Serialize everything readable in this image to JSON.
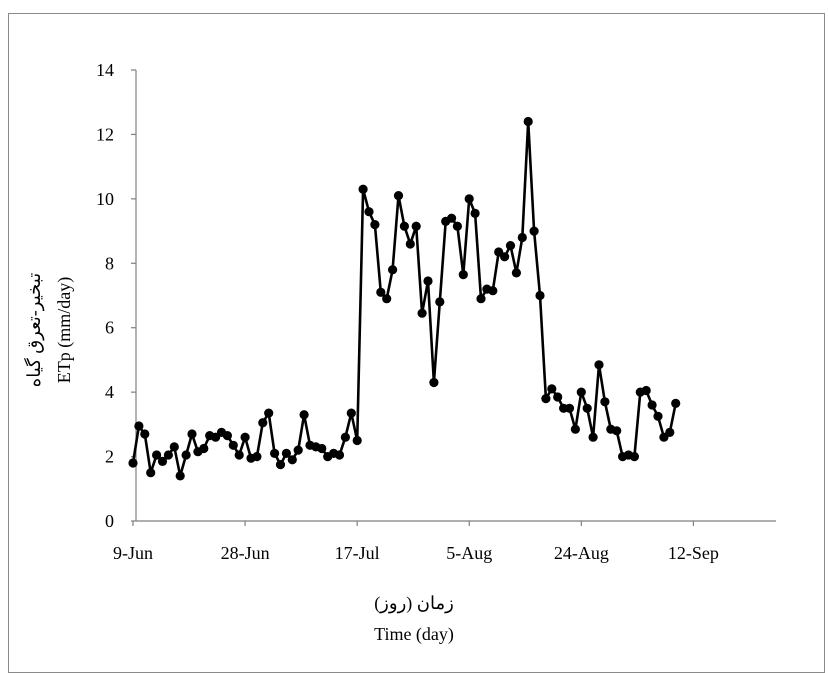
{
  "chart_data": {
    "type": "line",
    "title": "",
    "xlabel_fa": "زمان (روز)",
    "xlabel_en": "Time (day)",
    "ylabel_fa": "تبخیر-تعرق گیاه",
    "ylabel_en": "ETp (mm/day)",
    "ylim": [
      0,
      14
    ],
    "yticks": [
      0,
      2,
      4,
      6,
      8,
      10,
      12,
      14
    ],
    "xlim_days": [
      0,
      109
    ],
    "xticks": [
      {
        "day": 0,
        "label": "9-Jun"
      },
      {
        "day": 19,
        "label": "28-Jun"
      },
      {
        "day": 38,
        "label": "17-Jul"
      },
      {
        "day": 57,
        "label": "5-Aug"
      },
      {
        "day": 76,
        "label": "24-Aug"
      },
      {
        "day": 95,
        "label": "12-Sep"
      }
    ],
    "grid": false,
    "marker": "circle",
    "line_color": "#000000",
    "series": [
      {
        "values": [
          1.8,
          2.95,
          2.7,
          1.5,
          2.05,
          1.85,
          2.05,
          2.3,
          1.4,
          2.05,
          2.7,
          2.15,
          2.25,
          2.65,
          2.6,
          2.75,
          2.65,
          2.35,
          2.05,
          2.6,
          1.95,
          2.0,
          3.05,
          3.35,
          2.1,
          1.75,
          2.1,
          1.9,
          2.2,
          3.3,
          2.35,
          2.3,
          2.25,
          2.0,
          2.1,
          2.05,
          2.6,
          3.35,
          2.5,
          10.3,
          9.6,
          9.2,
          7.1,
          6.9,
          7.8,
          10.1,
          9.15,
          8.6,
          9.15,
          6.45,
          7.45,
          4.3,
          6.8,
          9.3,
          9.4,
          9.15,
          7.65,
          10.0,
          9.55,
          6.9,
          7.2,
          7.15,
          8.35,
          8.2,
          8.55,
          7.7,
          8.8,
          12.4,
          9.0,
          7.0,
          3.8,
          4.1,
          3.85,
          3.5,
          3.5,
          2.85,
          4.0,
          3.5,
          2.6,
          4.85,
          3.7,
          2.85,
          2.8,
          2.0,
          2.05,
          2.0,
          4.0,
          4.05,
          3.6,
          3.25,
          2.6,
          2.75,
          3.65
        ]
      }
    ]
  }
}
